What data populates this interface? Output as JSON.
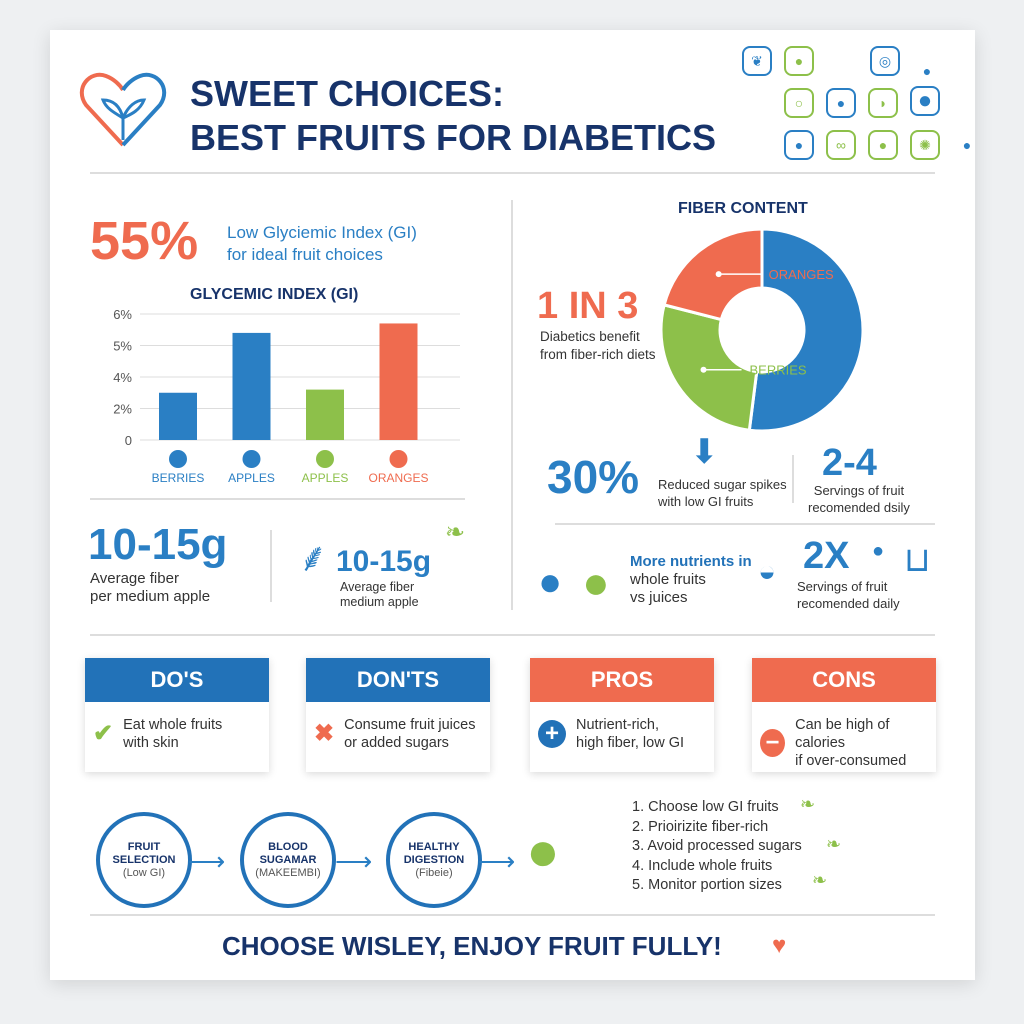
{
  "header": {
    "title_line1": "SWEET CHOICES:",
    "title_line2": "BEST FRUITS FOR DIABETICS"
  },
  "stat_gi": {
    "value": "55%",
    "text_line1": "Low Glyciemic Index (GI)",
    "text_line2": "for ideal fruit choices"
  },
  "chart_data": [
    {
      "type": "bar",
      "title": "GLYCEMIC INDEX (GI)",
      "categories": [
        "BERRIES",
        "APPLES",
        "APPLES",
        "ORANGES"
      ],
      "values": [
        3,
        5.4,
        3.2,
        5.7
      ],
      "yticks": [
        "0",
        "2%",
        "4%",
        "5%",
        "6%"
      ],
      "colors": [
        "#2a7fc4",
        "#2a7fc4",
        "#8dc04a",
        "#ef6b4f"
      ],
      "grid": true
    },
    {
      "type": "pie",
      "title": "FIBER CONTENT",
      "labels": [
        "",
        "BERRIES",
        "ORANGES"
      ],
      "values": [
        52,
        27,
        21
      ],
      "colors": [
        "#2a7fc4",
        "#8dc04a",
        "#ef6b4f"
      ],
      "donut": true
    }
  ],
  "fiber_left": {
    "value": "10-15g",
    "line1": "Average fiber",
    "line2": "per medium apple"
  },
  "fiber_right": {
    "value": "10-15g",
    "line1": "Average fiber",
    "line2": "medium apple"
  },
  "one_in_three": {
    "value": "1 IN 3",
    "line1": "Diabetics benefit",
    "line2": "from fiber-rich diets"
  },
  "stat_30": {
    "value": "30%",
    "line1": "Reduced sugar spikes",
    "line2": "with low GI fruits"
  },
  "stat_24": {
    "value": "2-4",
    "line1": "Servings of fruit",
    "line2": "recomended dsily"
  },
  "nutrients": {
    "line1": "More nutrients in",
    "line2": "whole fruits",
    "line3": "vs juices"
  },
  "stat_2x": {
    "value": "2X",
    "line1": "Servings of fruit",
    "line2": "recomended daily"
  },
  "boxes": [
    {
      "title": "DO'S",
      "line1": "Eat whole fruits",
      "line2": "with skin",
      "icon": "check-icon",
      "color": "#2272b8"
    },
    {
      "title": "DON'TS",
      "line1": "Consume fruit juices",
      "line2": "or added sugars",
      "icon": "x-icon",
      "color": "#2272b8"
    },
    {
      "title": "PROS",
      "line1": "Nutrient-rich,",
      "line2": "high fiber, low GI",
      "icon": "plus-icon",
      "color": "#ef6b4f"
    },
    {
      "title": "CONS",
      "line1": "Can be high of calories",
      "line2": "if over-consumed",
      "icon": "minus-icon",
      "color": "#ef6b4f"
    }
  ],
  "flow": [
    {
      "l1": "FRUIT",
      "l2": "SELECTION",
      "sub": "(Low GI)"
    },
    {
      "l1": "BLOOD",
      "l2": "SUGAMAR",
      "sub": "(MAKEEMBI)"
    },
    {
      "l1": "HEALTHY",
      "l2": "DIGESTION",
      "sub": "(Fibeie)"
    }
  ],
  "steps": [
    "1. Choose low GI fruits",
    "2. Prioirizite fiber-rich",
    "3. Avoid processed sugars",
    "4. Include whole fruits",
    "5. Monitor portion sizes"
  ],
  "footer": {
    "text": "CHOOSE WISLEY, ENJOY FRUIT FULLY!"
  }
}
